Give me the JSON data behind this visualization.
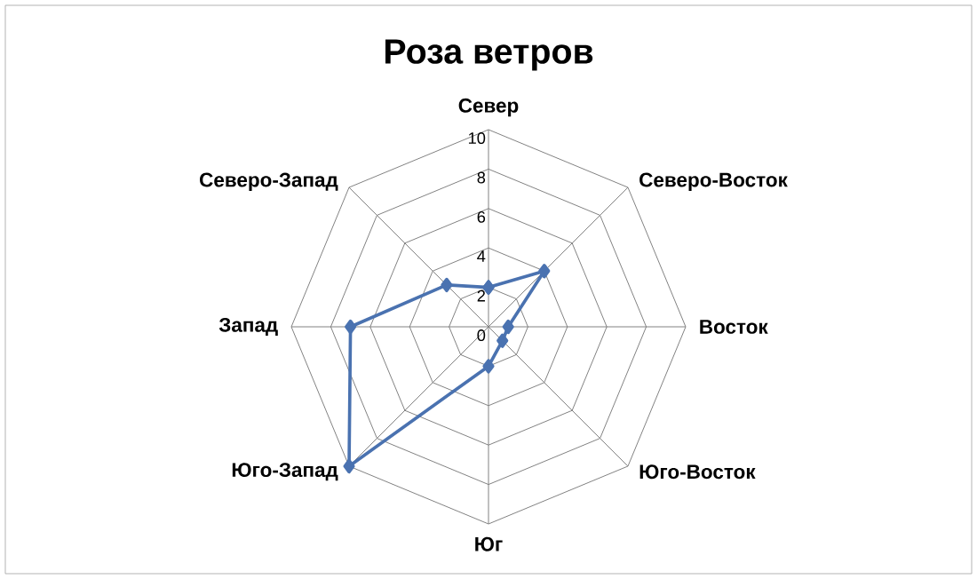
{
  "chart_data": {
    "type": "radar",
    "title": "Роза ветров",
    "categories": [
      "Север",
      "Северо-Восток",
      "Восток",
      "Юго-Восток",
      "Юг",
      "Юго-Запад",
      "Запад",
      "Северо-Запад"
    ],
    "series": [
      {
        "color": "#4a72b0",
        "values": [
          2,
          4,
          1,
          1,
          2,
          10,
          7,
          3
        ]
      }
    ],
    "ylim": [
      0,
      10
    ],
    "yticks": [
      0,
      2,
      4,
      6,
      8,
      10
    ],
    "grid": true,
    "marker": "diamond",
    "line_style": "solid"
  }
}
